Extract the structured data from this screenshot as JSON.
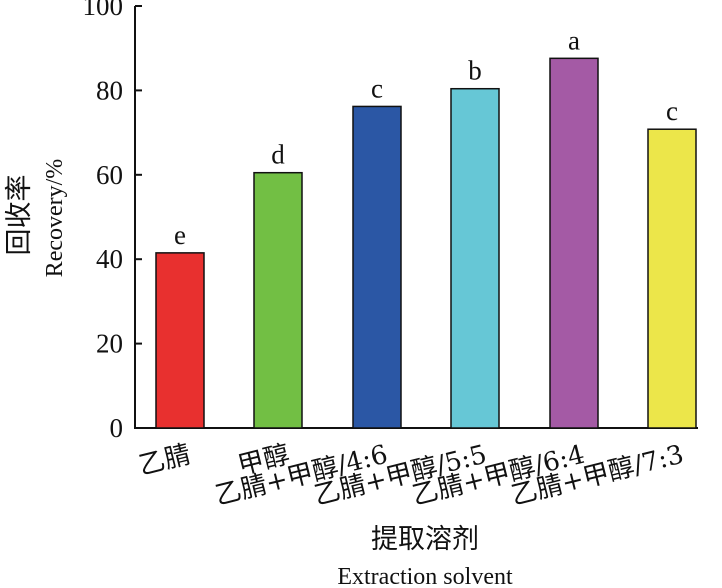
{
  "chart_data": {
    "type": "bar",
    "title": "",
    "xlabel_zh": "提取溶剂",
    "xlabel_en": "Extraction solvent",
    "ylabel_zh": "回收率",
    "ylabel_en": "Recovery/%",
    "ylim": [
      0,
      100
    ],
    "yticks": [
      "0",
      "20",
      "40",
      "60",
      "80",
      "100"
    ],
    "categories": [
      "乙腈",
      "甲醇",
      "乙腈+甲醇/4:6",
      "乙腈+甲醇/5:5",
      "乙腈+甲醇/6:4",
      "乙腈+甲醇/7:3"
    ],
    "values": [
      41.5,
      60.5,
      76.2,
      80.4,
      87.6,
      70.8
    ],
    "significance_labels": [
      "e",
      "d",
      "c",
      "b",
      "a",
      "c"
    ],
    "colors": [
      "#e8302f",
      "#72bf44",
      "#2b57a5",
      "#66c7d6",
      "#a45aa5",
      "#ece64a"
    ],
    "grid": false,
    "legend": "none"
  }
}
